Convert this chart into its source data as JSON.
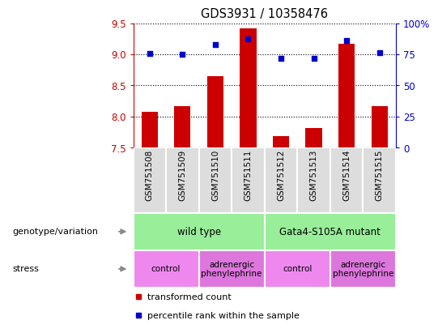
{
  "title": "GDS3931 / 10358476",
  "samples": [
    "GSM751508",
    "GSM751509",
    "GSM751510",
    "GSM751511",
    "GSM751512",
    "GSM751513",
    "GSM751514",
    "GSM751515"
  ],
  "transformed_count": [
    8.07,
    8.17,
    8.65,
    9.42,
    7.69,
    7.82,
    9.17,
    8.17
  ],
  "percentile_rank": [
    75.5,
    75.2,
    82.5,
    87.0,
    71.5,
    72.0,
    86.0,
    76.0
  ],
  "ylim_left": [
    7.5,
    9.5
  ],
  "ylim_right": [
    0,
    100
  ],
  "yticks_left": [
    7.5,
    8.0,
    8.5,
    9.0,
    9.5
  ],
  "yticks_right": [
    0,
    25,
    50,
    75,
    100
  ],
  "ytick_labels_right": [
    "0",
    "25",
    "50",
    "75",
    "100%"
  ],
  "bar_color": "#cc0000",
  "dot_color": "#0000cc",
  "bar_bottom": 7.5,
  "genotype_groups": [
    {
      "label": "wild type",
      "start": 0,
      "end": 4,
      "color": "#99ee99"
    },
    {
      "label": "Gata4-S105A mutant",
      "start": 4,
      "end": 8,
      "color": "#99ee99"
    }
  ],
  "stress_groups": [
    {
      "label": "control",
      "start": 0,
      "end": 2,
      "color": "#ee88ee"
    },
    {
      "label": "adrenergic\nphenylephrine",
      "start": 2,
      "end": 4,
      "color": "#dd77dd"
    },
    {
      "label": "control",
      "start": 4,
      "end": 6,
      "color": "#ee88ee"
    },
    {
      "label": "adrenergic\nphenylephrine",
      "start": 6,
      "end": 8,
      "color": "#dd77dd"
    }
  ],
  "legend_red_label": "transformed count",
  "legend_blue_label": "percentile rank within the sample",
  "bar_color_legend": "#cc0000",
  "dot_color_legend": "#0000cc",
  "left_axis_color": "#cc0000",
  "right_axis_color": "#0000cc",
  "genotype_label": "genotype/variation",
  "stress_label": "stress",
  "sample_bg_color": "#dddddd",
  "border_color": "#aaaaaa"
}
